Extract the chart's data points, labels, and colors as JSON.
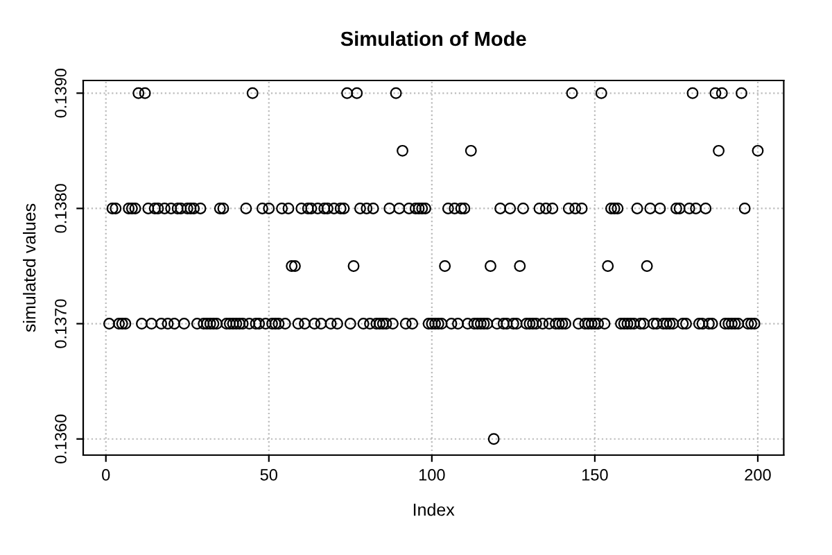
{
  "chart_data": {
    "type": "scatter",
    "title": "Simulation of Mode",
    "xlabel": "Index",
    "ylabel": "simulated values",
    "x": [
      1,
      2,
      3,
      4,
      5,
      6,
      7,
      8,
      9,
      10,
      11,
      12,
      13,
      14,
      15,
      16,
      17,
      18,
      19,
      20,
      21,
      22,
      23,
      24,
      25,
      26,
      27,
      28,
      29,
      30,
      31,
      32,
      33,
      34,
      35,
      36,
      37,
      38,
      39,
      40,
      41,
      42,
      43,
      44,
      45,
      46,
      47,
      48,
      49,
      50,
      51,
      52,
      53,
      54,
      55,
      56,
      57,
      58,
      59,
      60,
      61,
      62,
      63,
      64,
      65,
      66,
      67,
      68,
      69,
      70,
      71,
      72,
      73,
      74,
      75,
      76,
      77,
      78,
      79,
      80,
      81,
      82,
      83,
      84,
      85,
      86,
      87,
      88,
      89,
      90,
      91,
      92,
      93,
      94,
      95,
      96,
      97,
      98,
      99,
      100,
      101,
      102,
      103,
      104,
      105,
      106,
      107,
      108,
      109,
      110,
      111,
      112,
      113,
      114,
      115,
      116,
      117,
      118,
      119,
      120,
      121,
      122,
      123,
      124,
      125,
      126,
      127,
      128,
      129,
      130,
      131,
      132,
      133,
      134,
      135,
      136,
      137,
      138,
      139,
      140,
      141,
      142,
      143,
      144,
      145,
      146,
      147,
      148,
      149,
      150,
      151,
      152,
      153,
      154,
      155,
      156,
      157,
      158,
      159,
      160,
      161,
      162,
      163,
      164,
      165,
      166,
      167,
      168,
      169,
      170,
      171,
      172,
      173,
      174,
      175,
      176,
      177,
      178,
      179,
      180,
      181,
      182,
      183,
      184,
      185,
      186,
      187,
      188,
      189,
      190,
      191,
      192,
      193,
      194,
      195,
      196,
      197,
      198,
      199,
      200
    ],
    "values": [
      0.137,
      0.138,
      0.138,
      0.137,
      0.137,
      0.137,
      0.138,
      0.138,
      0.138,
      0.139,
      0.137,
      0.139,
      0.138,
      0.137,
      0.138,
      0.138,
      0.137,
      0.138,
      0.137,
      0.138,
      0.137,
      0.138,
      0.138,
      0.137,
      0.138,
      0.138,
      0.138,
      0.137,
      0.138,
      0.137,
      0.137,
      0.137,
      0.137,
      0.137,
      0.138,
      0.138,
      0.137,
      0.137,
      0.137,
      0.137,
      0.137,
      0.137,
      0.138,
      0.137,
      0.139,
      0.137,
      0.137,
      0.138,
      0.137,
      0.138,
      0.137,
      0.137,
      0.137,
      0.138,
      0.137,
      0.138,
      0.1375,
      0.1375,
      0.137,
      0.138,
      0.137,
      0.138,
      0.138,
      0.137,
      0.138,
      0.137,
      0.138,
      0.138,
      0.137,
      0.138,
      0.137,
      0.138,
      0.138,
      0.139,
      0.137,
      0.1375,
      0.139,
      0.138,
      0.137,
      0.138,
      0.137,
      0.138,
      0.137,
      0.137,
      0.137,
      0.137,
      0.138,
      0.137,
      0.139,
      0.138,
      0.1385,
      0.137,
      0.138,
      0.137,
      0.138,
      0.138,
      0.138,
      0.138,
      0.137,
      0.137,
      0.137,
      0.137,
      0.137,
      0.1375,
      0.138,
      0.137,
      0.138,
      0.137,
      0.138,
      0.138,
      0.137,
      0.1385,
      0.137,
      0.137,
      0.137,
      0.137,
      0.137,
      0.1375,
      0.136,
      0.137,
      0.138,
      0.137,
      0.137,
      0.138,
      0.137,
      0.137,
      0.1375,
      0.138,
      0.137,
      0.137,
      0.137,
      0.137,
      0.138,
      0.137,
      0.138,
      0.137,
      0.138,
      0.137,
      0.137,
      0.137,
      0.137,
      0.138,
      0.139,
      0.138,
      0.137,
      0.138,
      0.137,
      0.137,
      0.137,
      0.137,
      0.137,
      0.139,
      0.137,
      0.1375,
      0.138,
      0.138,
      0.138,
      0.137,
      0.137,
      0.137,
      0.137,
      0.137,
      0.138,
      0.137,
      0.137,
      0.1375,
      0.138,
      0.137,
      0.137,
      0.138,
      0.137,
      0.137,
      0.137,
      0.137,
      0.138,
      0.138,
      0.137,
      0.137,
      0.138,
      0.139,
      0.138,
      0.137,
      0.137,
      0.138,
      0.137,
      0.137,
      0.139,
      0.1385,
      0.139,
      0.137,
      0.137,
      0.137,
      0.137,
      0.137,
      0.139,
      0.138,
      0.137,
      0.137,
      0.137,
      0.1385
    ],
    "color": "#000000",
    "marker": "circle",
    "grid": true,
    "xlim": [
      -6.96,
      207.96
    ],
    "ylim": [
      0.13586,
      0.13911
    ],
    "xticks": [
      0,
      50,
      100,
      150,
      200
    ],
    "yticks": [
      {
        "value": 0.136,
        "label": "0.1360"
      },
      {
        "value": 0.137,
        "label": "0.1370"
      },
      {
        "value": 0.138,
        "label": "0.1380"
      },
      {
        "value": 0.139,
        "label": "0.1390"
      }
    ]
  }
}
